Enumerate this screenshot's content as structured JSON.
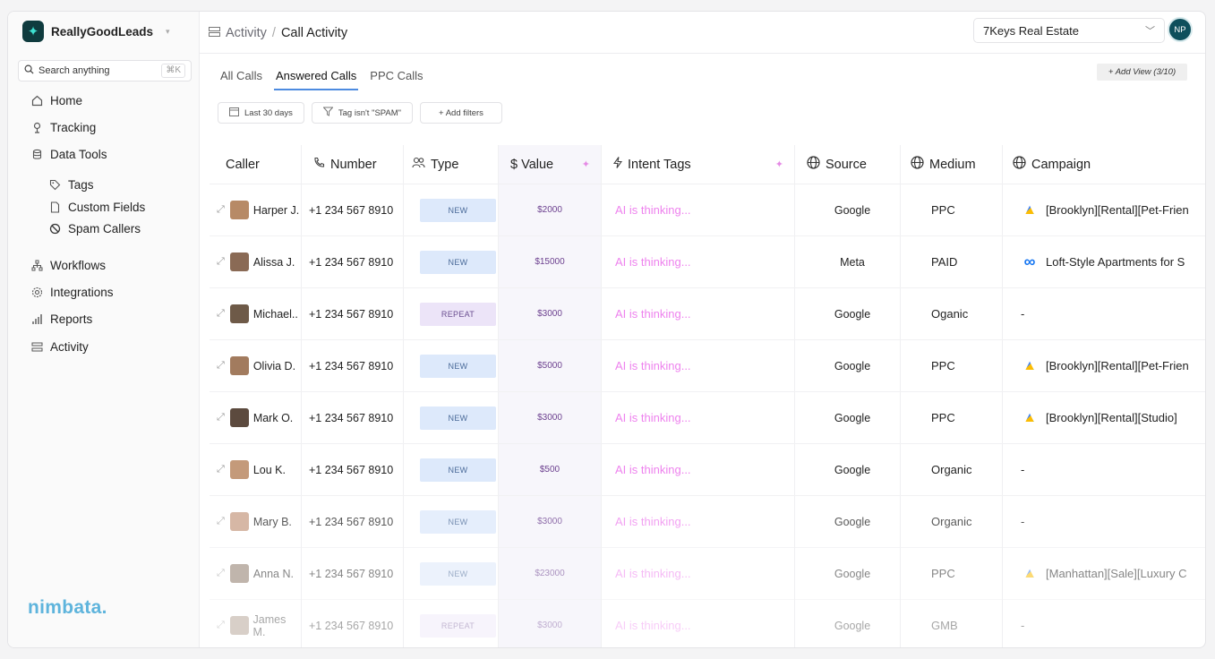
{
  "brand": {
    "name": "ReallyGoodLeads",
    "caret": "▾",
    "logo_icon": "✦"
  },
  "search": {
    "placeholder": "Search anything",
    "shortcut": "⌘K"
  },
  "nav": {
    "home": "Home",
    "tracking": "Tracking",
    "data_tools": "Data Tools",
    "tags": "Tags",
    "custom_fields": "Custom Fields",
    "spam_callers": "Spam Callers",
    "workflows": "Workflows",
    "integrations": "Integrations",
    "reports": "Reports",
    "activity": "Activity"
  },
  "footer_brand": "nimbata.",
  "breadcrumb": {
    "parent": "Activity",
    "sep": "/",
    "current": "Call Activity"
  },
  "org_selector": {
    "value": "7Keys Real Estate"
  },
  "user": {
    "initials": "NP"
  },
  "tabs": [
    "All Calls",
    "Answered Calls",
    "PPC Calls"
  ],
  "add_view": "+ Add View (3/10)",
  "filters": {
    "date": "Last 30 days",
    "tag": "Tag isn't \"SPAM\"",
    "add": "+ Add filters"
  },
  "columns": {
    "caller": "Caller",
    "number": "Number",
    "type": "Type",
    "value": "$ Value",
    "intent": "Intent Tags",
    "source": "Source",
    "medium": "Medium",
    "campaign": "Campaign"
  },
  "rows": [
    {
      "caller": "Harper J.",
      "number": "+1 234 567 8910",
      "type": "NEW",
      "value": "$2000",
      "intent": "AI is thinking...",
      "source": "Google",
      "medium": "PPC",
      "campaign": "[Brooklyn][Rental][Pet-Frien",
      "campaign_icon": "google-ads",
      "face": "#b78a66"
    },
    {
      "caller": "Alissa J.",
      "number": "+1 234 567 8910",
      "type": "NEW",
      "value": "$15000",
      "intent": "AI is thinking...",
      "source": "Meta",
      "medium": "PAID",
      "campaign": "Loft-Style Apartments for S",
      "campaign_icon": "meta",
      "face": "#8a6a55"
    },
    {
      "caller": "Michael..",
      "number": "+1 234 567 8910",
      "type": "REPEAT",
      "value": "$3000",
      "intent": "AI is thinking...",
      "source": "Google",
      "medium": "Oganic",
      "campaign": "-",
      "campaign_icon": "none",
      "face": "#6e5a48"
    },
    {
      "caller": "Olivia D.",
      "number": "+1 234 567 8910",
      "type": "NEW",
      "value": "$5000",
      "intent": "AI is thinking...",
      "source": "Google",
      "medium": "PPC",
      "campaign": "[Brooklyn][Rental][Pet-Frien",
      "campaign_icon": "google-ads",
      "face": "#a27b5e"
    },
    {
      "caller": "Mark O.",
      "number": "+1 234 567 8910",
      "type": "NEW",
      "value": "$3000",
      "intent": "AI is thinking...",
      "source": "Google",
      "medium": "PPC",
      "campaign": "[Brooklyn][Rental][Studio]",
      "campaign_icon": "google-ads",
      "face": "#5c4a3e"
    },
    {
      "caller": "Lou K.",
      "number": "+1 234 567 8910",
      "type": "NEW",
      "value": "$500",
      "intent": "AI is thinking...",
      "source": "Google",
      "medium": "Organic",
      "campaign": "-",
      "campaign_icon": "none",
      "face": "#c49a7a"
    },
    {
      "caller": "Mary B.",
      "number": "+1 234 567 8910",
      "type": "NEW",
      "value": "$3000",
      "intent": "AI is thinking...",
      "source": "Google",
      "medium": "Organic",
      "campaign": "-",
      "campaign_icon": "none",
      "face": "#c9a088"
    },
    {
      "caller": "Anna N.",
      "number": "+1 234 567 8910",
      "type": "NEW",
      "value": "$23000",
      "intent": "AI is thinking...",
      "source": "Google",
      "medium": "PPC",
      "campaign": "[Manhattan][Sale][Luxury C",
      "campaign_icon": "google-ads",
      "face": "#8d7a6a"
    },
    {
      "caller": "James M.",
      "number": "+1 234 567 8910",
      "type": "REPEAT",
      "value": "$3000",
      "intent": "AI is thinking...",
      "source": "Google",
      "medium": "GMB",
      "campaign": "-",
      "campaign_icon": "none",
      "face": "#a08878"
    }
  ],
  "colors": {
    "accent": "#4d8be0",
    "ai_text": "#ee82ee",
    "value_text": "#6b3f8e",
    "brand_footer": "#5eb4dc"
  }
}
